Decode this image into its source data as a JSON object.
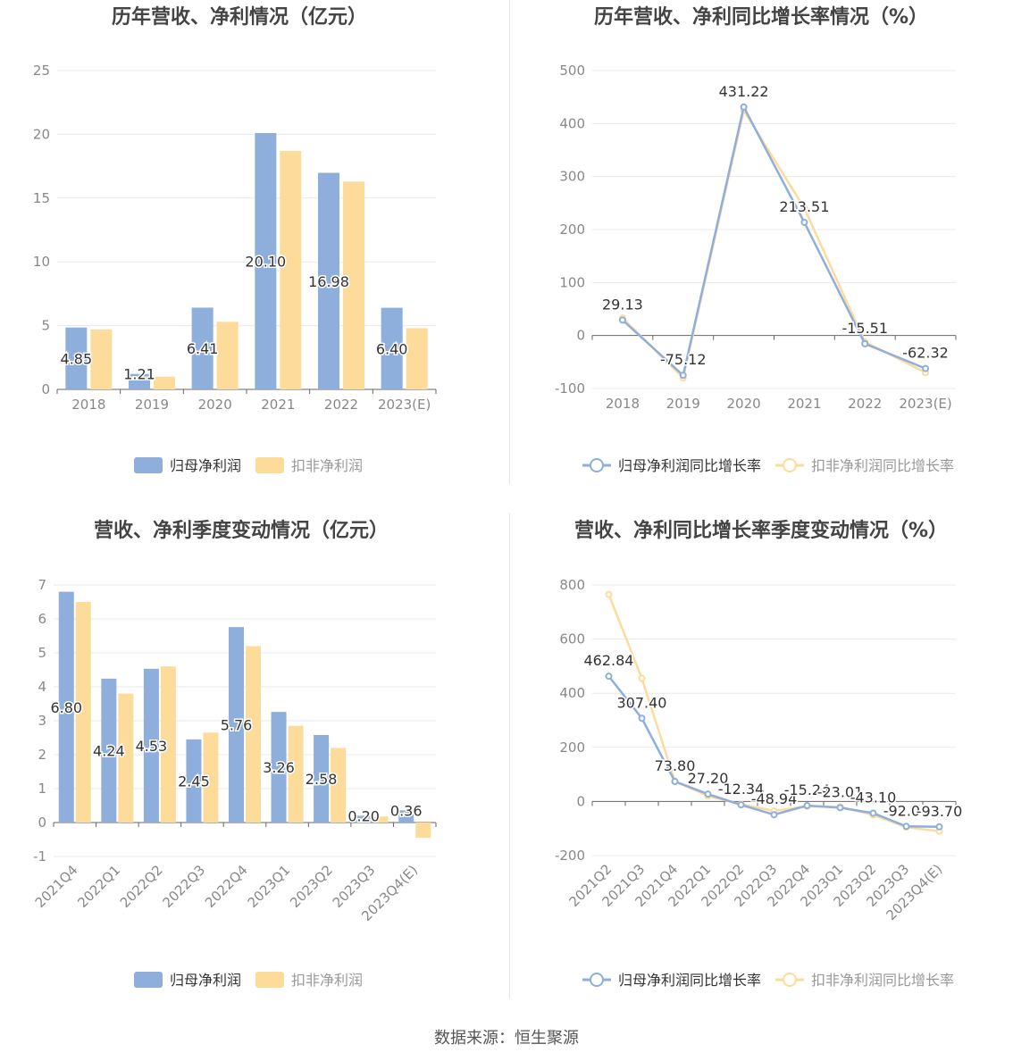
{
  "source": "数据来源：恒生聚源",
  "colors": {
    "blue": "#8eaedc",
    "orange": "#fddb9b",
    "grid": "#e6e9f0",
    "axis": "#666666",
    "label": "#333333",
    "tick": "#888888"
  },
  "chart_data": [
    {
      "type": "bar",
      "title": "历年营收、净利情况（亿元）",
      "categories": [
        "2018",
        "2019",
        "2020",
        "2021",
        "2022",
        "2023(E)"
      ],
      "series": [
        {
          "name": "归母净利润",
          "values": [
            4.85,
            1.21,
            6.41,
            20.1,
            16.98,
            6.4
          ],
          "labels": [
            "4.85",
            "1.21",
            "6.41",
            "20.10",
            "16.98",
            "6.40"
          ]
        },
        {
          "name": "扣非净利润",
          "values": [
            4.7,
            1.0,
            5.3,
            18.7,
            16.3,
            4.8
          ]
        }
      ],
      "ylim": [
        0,
        25
      ],
      "yticks": [
        "0",
        "5",
        "10",
        "15",
        "20",
        "25"
      ],
      "ytick_values": [
        0,
        5,
        10,
        15,
        20,
        25
      ],
      "grid": true,
      "legend_position": "bottom-center"
    },
    {
      "type": "line",
      "title": "历年营收、净利同比增长率情况（%）",
      "categories": [
        "2018",
        "2019",
        "2020",
        "2021",
        "2022",
        "2023(E)"
      ],
      "series": [
        {
          "name": "归母净利润同比增长率",
          "values": [
            29.13,
            -75.12,
            431.22,
            213.51,
            -15.51,
            -62.32
          ],
          "labels": [
            "29.13",
            "-75.12",
            "431.22",
            "213.51",
            "-15.51",
            "-62.32"
          ]
        },
        {
          "name": "扣非净利润同比增长率",
          "values": [
            33,
            -80,
            425,
            240,
            -12,
            -70
          ]
        }
      ],
      "ylim": [
        -100,
        500
      ],
      "yticks": [
        "-100",
        "0",
        "100",
        "200",
        "300",
        "400",
        "500"
      ],
      "ytick_values": [
        -100,
        0,
        100,
        200,
        300,
        400,
        500
      ],
      "grid": true,
      "legend_position": "bottom-center"
    },
    {
      "type": "bar",
      "title": "营收、净利季度变动情况（亿元）",
      "categories": [
        "2021Q4",
        "2022Q1",
        "2022Q2",
        "2022Q3",
        "2022Q4",
        "2023Q1",
        "2023Q2",
        "2023Q3",
        "2023Q4(E)"
      ],
      "series": [
        {
          "name": "归母净利润",
          "values": [
            6.8,
            4.24,
            4.53,
            2.45,
            5.76,
            3.26,
            2.58,
            0.2,
            0.36
          ],
          "labels": [
            "6.80",
            "4.24",
            "4.53",
            "2.45",
            "5.76",
            "3.26",
            "2.58",
            "0.20",
            "0.36"
          ]
        },
        {
          "name": "扣非净利润",
          "values": [
            6.5,
            3.8,
            4.6,
            2.65,
            5.2,
            2.85,
            2.2,
            0.18,
            -0.45
          ]
        }
      ],
      "ylim": [
        -1,
        7
      ],
      "yticks": [
        "-1",
        "0",
        "1",
        "2",
        "3",
        "4",
        "5",
        "6",
        "7"
      ],
      "ytick_values": [
        -1,
        0,
        1,
        2,
        3,
        4,
        5,
        6,
        7
      ],
      "grid": true,
      "legend_position": "bottom-center"
    },
    {
      "type": "line",
      "title": "营收、净利同比增长率季度变动情况（%）",
      "categories": [
        "2021Q2",
        "2021Q3",
        "2021Q4",
        "2022Q1",
        "2022Q2",
        "2022Q3",
        "2022Q4",
        "2023Q1",
        "2023Q2",
        "2023Q3",
        "2023Q4(E)"
      ],
      "series": [
        {
          "name": "归母净利润同比增长率",
          "values": [
            462.84,
            307.4,
            73.8,
            27.2,
            -12.34,
            -48.94,
            -15.24,
            -23.01,
            -43.1,
            -92.0,
            -93.7
          ],
          "labels": [
            "462.84",
            "307.40",
            "73.80",
            "27.20",
            "-12.34",
            "-48.94",
            "-15.24",
            "-23.01",
            "-43.10",
            "-92.00",
            "-93.70"
          ]
        },
        {
          "name": "扣非净利润同比增长率",
          "values": [
            765,
            455,
            75,
            20,
            -10,
            -35,
            -18,
            -20,
            -50,
            -95,
            -110
          ]
        }
      ],
      "ylim": [
        -200,
        800
      ],
      "yticks": [
        "-200",
        "0",
        "200",
        "400",
        "600",
        "800"
      ],
      "ytick_values": [
        -200,
        0,
        200,
        400,
        600,
        800
      ],
      "grid": true,
      "legend_position": "bottom-center"
    }
  ]
}
